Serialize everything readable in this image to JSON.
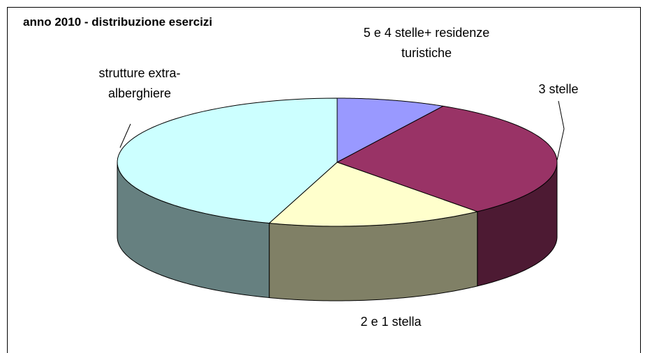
{
  "chart_data": {
    "type": "pie3d",
    "title": "anno 2010 - distribuzione esercizi",
    "categories": [
      "5 e 4 stelle+ residenze turistiche",
      "3 stelle",
      "2 e 1 stella",
      "strutture extra-alberghiere"
    ],
    "values": [
      8,
      31,
      16,
      45
    ],
    "colors": [
      "#9999ff",
      "#993366",
      "#ffffcc",
      "#ccffff"
    ],
    "side_colors": [
      "#6b6bb3",
      "#4d1a33",
      "#808066",
      "#668080"
    ]
  }
}
